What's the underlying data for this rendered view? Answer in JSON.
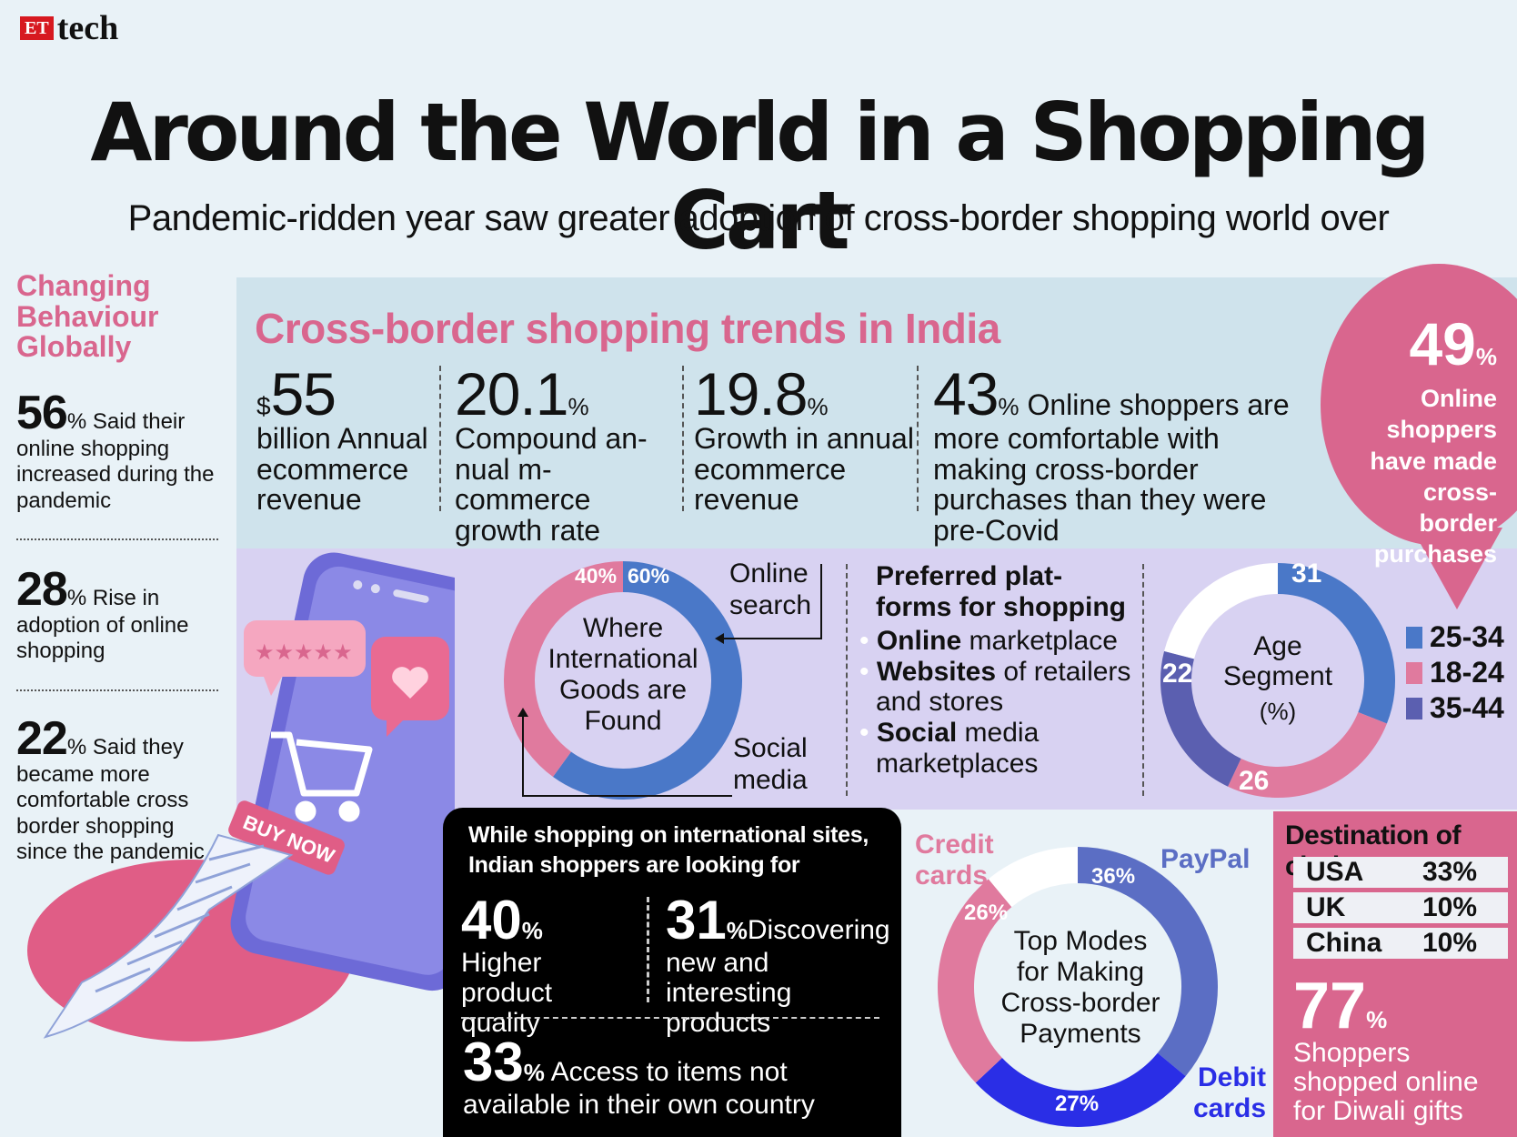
{
  "brand": {
    "et": "ET",
    "tech": "tech"
  },
  "title": "Around the World in a Shopping Cart",
  "subtitle": "Pandemic-ridden year saw greater adoption of cross-border shopping world over",
  "global": {
    "title": "Changing Behaviour Globally",
    "stats": [
      {
        "value": "56",
        "unit": "%",
        "text": "Said their online shopping increased during the pandemic"
      },
      {
        "value": "28",
        "unit": "%",
        "text": "Rise in adoption of online shopping"
      },
      {
        "value": "22",
        "unit": "%",
        "text": "Said they became more comfortable cross border shopping since the pandemic"
      }
    ]
  },
  "india": {
    "title": "Cross-border shopping trends in India",
    "stats": [
      {
        "prefix": "$",
        "value": "55",
        "unit": "",
        "text": "billion Annual ecommerce revenue"
      },
      {
        "prefix": "",
        "value": "20.1",
        "unit": "%",
        "text": "Compound an-nual m-commerce growth rate"
      },
      {
        "prefix": "",
        "value": "19.8",
        "unit": "%",
        "text": "Growth in annual ecommerce revenue"
      },
      {
        "prefix": "",
        "value": "43",
        "unit": "%",
        "text": "Online shoppers are more comfortable with making cross-border purchases than they were pre-Covid"
      }
    ],
    "highlight": {
      "value": "49",
      "unit": "%",
      "text": "Online shoppers have made cross-border purchases"
    }
  },
  "phone": {
    "stars": "★★★★★",
    "buy_now": "BUY NOW"
  },
  "platforms": {
    "title": "Preferred plat-forms for shopping",
    "items": [
      {
        "bold": "Online",
        "rest": " marketplace"
      },
      {
        "bold": "Websites",
        "rest": " of retailers and stores"
      },
      {
        "bold": "Social",
        "rest": " media marketplaces"
      }
    ]
  },
  "looking": {
    "title": "While shopping on international sites, Indian shoppers are looking for",
    "items": [
      {
        "value": "40",
        "unit": "%",
        "text": "Higher product quality"
      },
      {
        "value": "31",
        "unit": "%",
        "text": "Discovering new and interesting products"
      },
      {
        "value": "33",
        "unit": "%",
        "text": "Access to items not available in their own country"
      }
    ]
  },
  "destination": {
    "title": "Destination of choice",
    "rows": [
      {
        "country": "USA",
        "share": "33%"
      },
      {
        "country": "UK",
        "share": "10%"
      },
      {
        "country": "China",
        "share": "10%"
      }
    ],
    "diwali": {
      "value": "77",
      "unit": "%",
      "text": "Shoppers shopped online for Diwali gifts"
    }
  },
  "colors": {
    "pink": "#d9668e",
    "blue": "#4a78c8",
    "purple": "#5b5fb0",
    "royal": "#2a2ee6",
    "white": "#ffffff"
  },
  "chart_data": [
    {
      "type": "pie",
      "donut": true,
      "center_label": "Where International Goods are Found",
      "slices": [
        {
          "name": "Online search",
          "value": 60,
          "label": "60%",
          "color": "#4a78c8"
        },
        {
          "name": "Social media",
          "value": 40,
          "label": "40%",
          "color": "#e07a9e"
        }
      ]
    },
    {
      "type": "pie",
      "donut": true,
      "center_label": "Age Segment",
      "center_sub": "(%)",
      "slices": [
        {
          "name": "25-34",
          "value": 31,
          "label": "31",
          "color": "#4a78c8"
        },
        {
          "name": "18-24",
          "value": 26,
          "label": "26",
          "color": "#e07a9e"
        },
        {
          "name": "35-44",
          "value": 22,
          "label": "22",
          "color": "#5b5fb0"
        },
        {
          "name": "",
          "value": 21,
          "label": "",
          "color": "#ffffff"
        }
      ],
      "legend": [
        "25-34",
        "18-24",
        "35-44"
      ],
      "legend_position": "right"
    },
    {
      "type": "pie",
      "donut": true,
      "center_label": "Top Modes for Making Cross-border Payments",
      "slices": [
        {
          "name": "PayPal",
          "value": 36,
          "label": "36%",
          "color": "#5b6ec4"
        },
        {
          "name": "Debit cards",
          "value": 27,
          "label": "27%",
          "color": "#2a2ee6"
        },
        {
          "name": "Credit cards",
          "value": 26,
          "label": "26%",
          "color": "#e07a9e"
        },
        {
          "name": "",
          "value": 11,
          "label": "",
          "color": "#ffffff"
        }
      ]
    }
  ]
}
